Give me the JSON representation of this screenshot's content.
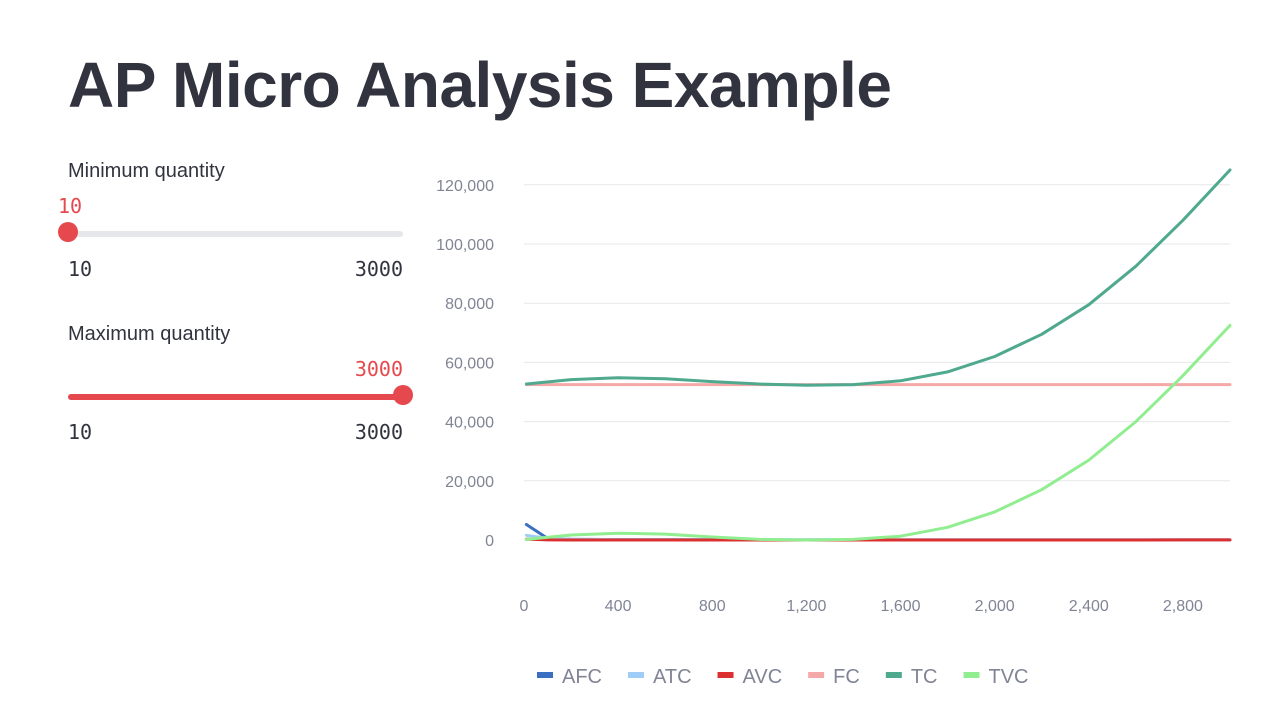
{
  "page": {
    "title": "AP Micro Analysis Example"
  },
  "sliders": [
    {
      "label": "Minimum quantity",
      "value": "10",
      "min_label": "10",
      "max_label": "3000",
      "position": 0.0
    },
    {
      "label": "Maximum quantity",
      "value": "3000",
      "min_label": "10",
      "max_label": "3000",
      "position": 1.0
    }
  ],
  "colors": {
    "accent": "#e5484d",
    "grid": "#e6e7ea",
    "tick": "#808495"
  },
  "chart_data": {
    "type": "line",
    "xlim": [
      0,
      3000
    ],
    "ylim": [
      0,
      125000
    ],
    "x_ticks": [
      0,
      400,
      800,
      1200,
      1600,
      2000,
      2400,
      2800
    ],
    "x_tick_labels": [
      "0",
      "400",
      "800",
      "1,200",
      "1,600",
      "2,000",
      "2,400",
      "2,800"
    ],
    "y_ticks": [
      0,
      20000,
      40000,
      60000,
      80000,
      100000,
      120000
    ],
    "y_tick_labels": [
      "0",
      "20,000",
      "40,000",
      "60,000",
      "80,000",
      "100,000",
      "120,000"
    ],
    "grid": true,
    "legend_position": "bottom",
    "series": [
      {
        "name": "AFC",
        "color": "#3b6fc1",
        "x": [
          10,
          100,
          200,
          400,
          800,
          1200,
          1600,
          2000,
          2400,
          2800,
          3000
        ],
        "values": [
          5250,
          525,
          263,
          131,
          66,
          44,
          33,
          26,
          22,
          19,
          18
        ]
      },
      {
        "name": "ATC",
        "color": "#9fcdf7",
        "x": [
          10,
          100,
          200,
          400,
          800,
          1200,
          1600,
          2000,
          2400,
          2800,
          3000
        ],
        "values": [
          1600,
          550,
          280,
          138,
          68,
          44,
          34,
          31,
          34,
          36,
          42
        ]
      },
      {
        "name": "AVC",
        "color": "#dc2f2f",
        "x": [
          10,
          100,
          200,
          400,
          800,
          1200,
          1600,
          2000,
          2400,
          2800,
          3000
        ],
        "values": [
          300,
          18,
          11,
          7,
          2,
          0,
          3,
          5,
          12,
          17,
          24
        ]
      },
      {
        "name": "FC",
        "color": "#f4a9a8",
        "x": [
          10,
          3000
        ],
        "values": [
          52500,
          52500
        ]
      },
      {
        "name": "TC",
        "color": "#4fa98e",
        "x": [
          10,
          200,
          400,
          600,
          800,
          1000,
          1200,
          1400,
          1600,
          1800,
          2000,
          2200,
          2400,
          2600,
          2800,
          3000
        ],
        "values": [
          52700,
          54200,
          54800,
          54500,
          53500,
          52700,
          52300,
          52500,
          53800,
          56800,
          62000,
          69500,
          79500,
          92500,
          108000,
          125000
        ]
      },
      {
        "name": "TVC",
        "color": "#90ee90",
        "x": [
          10,
          200,
          400,
          600,
          800,
          1000,
          1200,
          1400,
          1600,
          1800,
          2000,
          2200,
          2400,
          2600,
          2800,
          3000
        ],
        "values": [
          200,
          1700,
          2300,
          2000,
          1000,
          200,
          0,
          200,
          1300,
          4300,
          9500,
          17000,
          27000,
          40000,
          55500,
          72500
        ]
      }
    ]
  }
}
